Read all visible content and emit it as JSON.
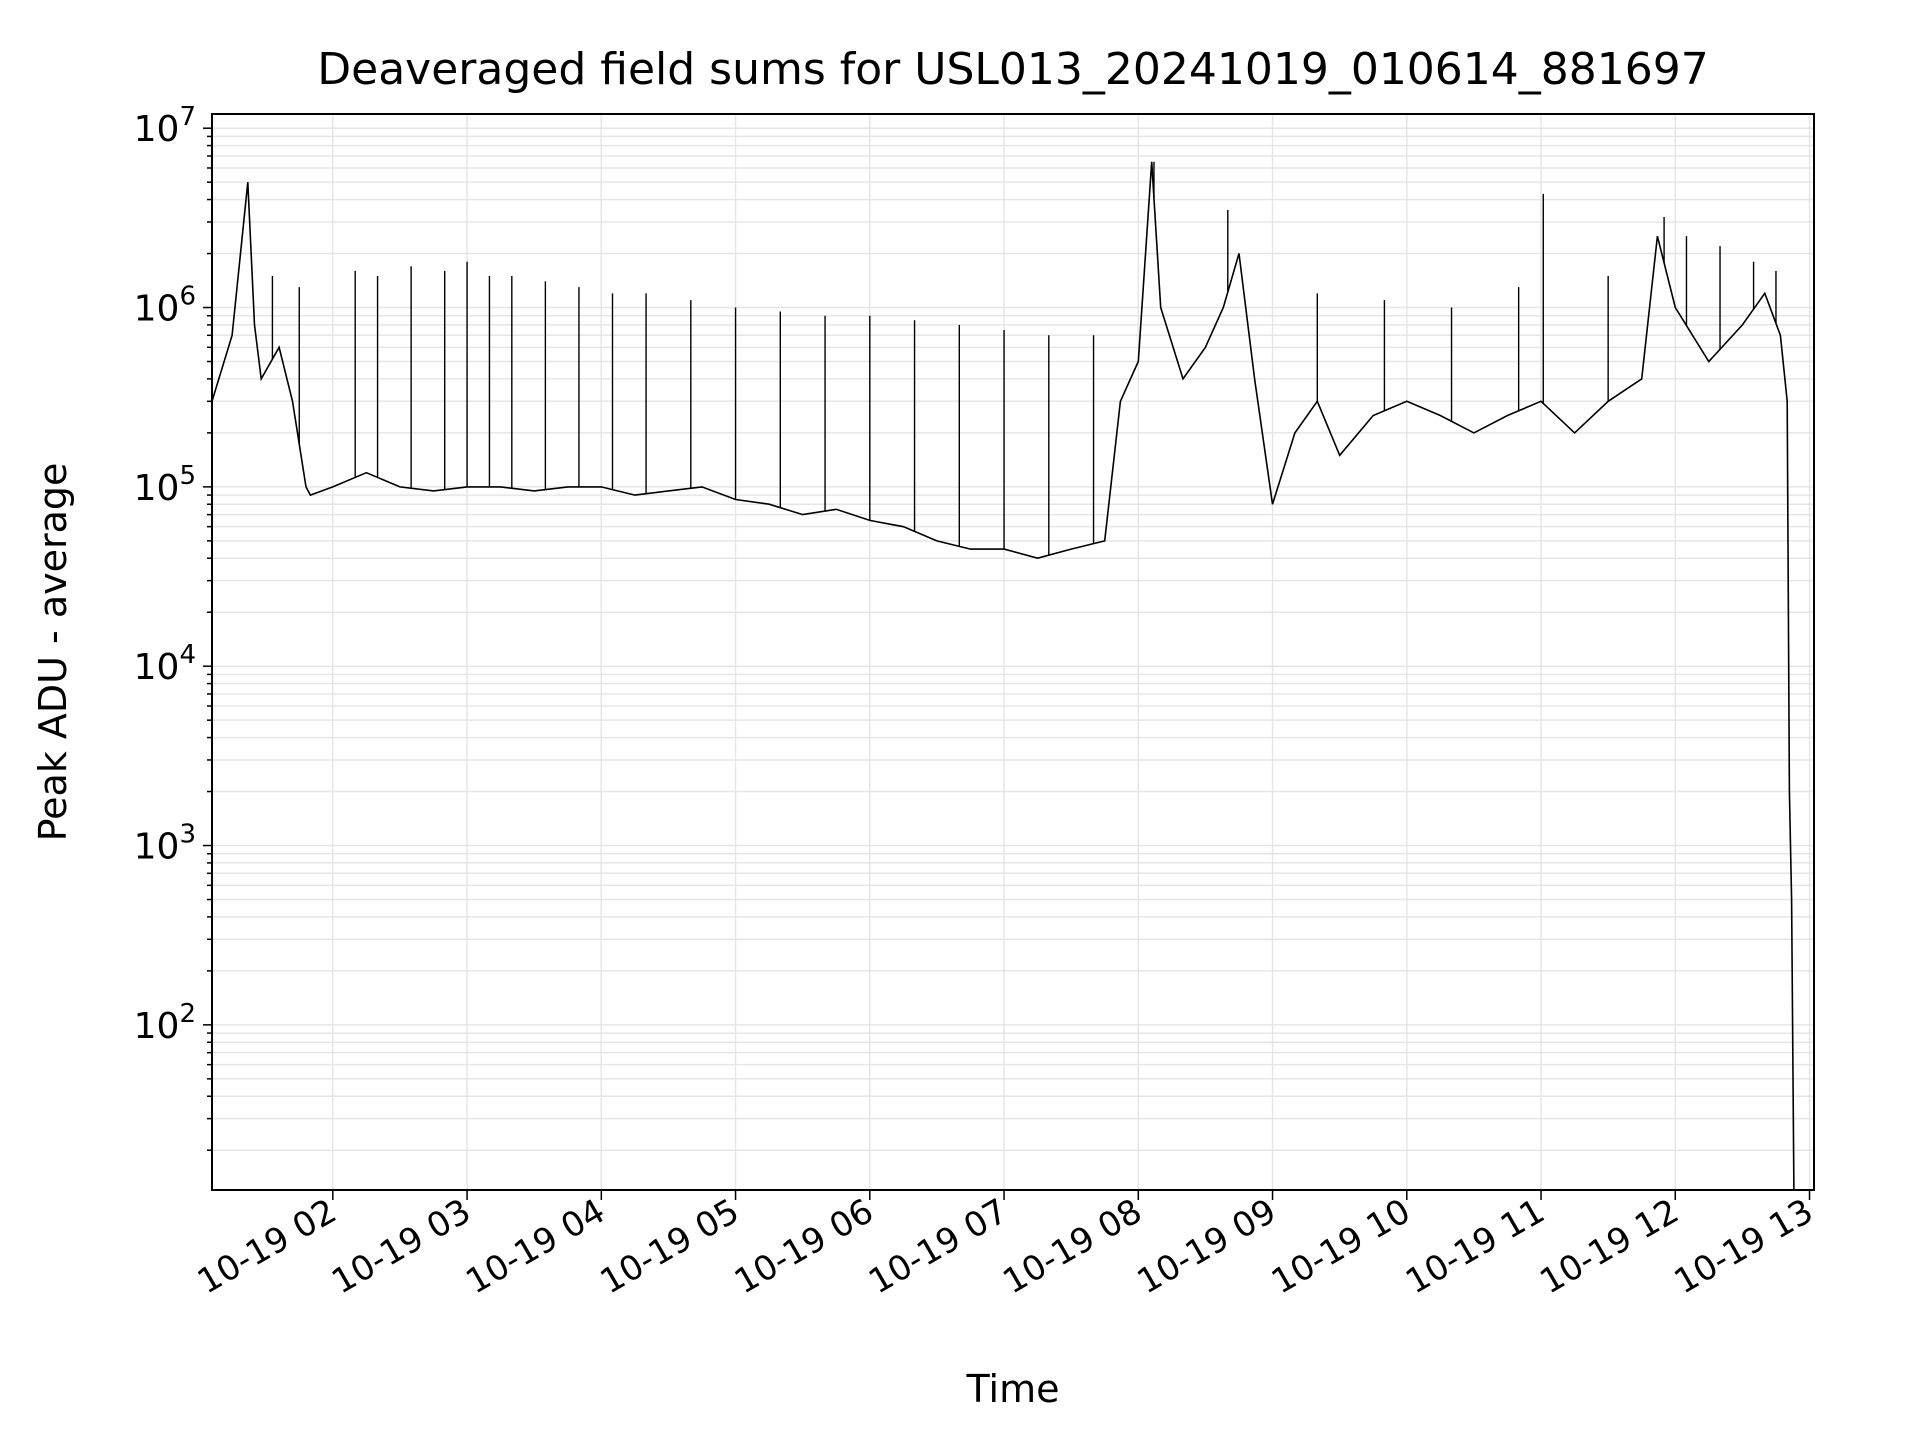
{
  "chart_data": {
    "type": "line",
    "title": "Deaveraged field sums for USL013_20241019_010614_881697",
    "xlabel": "Time",
    "ylabel": "Peak ADU - average",
    "yscale": "log",
    "ylim": [
      12,
      12000000
    ],
    "xlim": [
      "10-19 01:06",
      "10-19 13:02"
    ],
    "grid": true,
    "line_color": "#000000",
    "grid_color": "#e6e6e6",
    "x_ticks": [
      "10-19 02",
      "10-19 03",
      "10-19 04",
      "10-19 05",
      "10-19 06",
      "10-19 07",
      "10-19 08",
      "10-19 09",
      "10-19 10",
      "10-19 11",
      "10-19 12",
      "10-19 13"
    ],
    "y_ticks": [
      {
        "base": "10",
        "exp": "2"
      },
      {
        "base": "10",
        "exp": "3"
      },
      {
        "base": "10",
        "exp": "4"
      },
      {
        "base": "10",
        "exp": "5"
      },
      {
        "base": "10",
        "exp": "6"
      },
      {
        "base": "10",
        "exp": "7"
      }
    ],
    "series": [
      {
        "x": [
          "10-19 01:06",
          "10-19 01:15",
          "10-19 01:22",
          "10-19 01:25",
          "10-19 01:28",
          "10-19 01:36",
          "10-19 01:42",
          "10-19 01:48",
          "10-19 01:50",
          "10-19 02:00",
          "10-19 02:15",
          "10-19 02:30",
          "10-19 02:45",
          "10-19 03:00",
          "10-19 03:15",
          "10-19 03:30",
          "10-19 03:45",
          "10-19 04:00",
          "10-19 04:15",
          "10-19 04:30",
          "10-19 04:45",
          "10-19 05:00",
          "10-19 05:15",
          "10-19 05:30",
          "10-19 05:45",
          "10-19 06:00",
          "10-19 06:15",
          "10-19 06:30",
          "10-19 06:45",
          "10-19 07:00",
          "10-19 07:15",
          "10-19 07:30",
          "10-19 07:45",
          "10-19 07:52",
          "10-19 08:00",
          "10-19 08:06",
          "10-19 08:10",
          "10-19 08:20",
          "10-19 08:30",
          "10-19 08:38",
          "10-19 08:45",
          "10-19 08:52",
          "10-19 09:00",
          "10-19 09:10",
          "10-19 09:20",
          "10-19 09:30",
          "10-19 09:45",
          "10-19 10:00",
          "10-19 10:15",
          "10-19 10:30",
          "10-19 10:45",
          "10-19 11:00",
          "10-19 11:15",
          "10-19 11:30",
          "10-19 11:45",
          "10-19 11:52",
          "10-19 12:00",
          "10-19 12:15",
          "10-19 12:30",
          "10-19 12:40",
          "10-19 12:47",
          "10-19 12:50",
          "10-19 12:51",
          "10-19 12:52",
          "10-19 12:53"
        ],
        "y": [
          300000,
          700000,
          5000000,
          800000,
          400000,
          600000,
          300000,
          100000,
          90000,
          100000,
          120000,
          100000,
          95000,
          100000,
          100000,
          95000,
          100000,
          100000,
          90000,
          95000,
          100000,
          85000,
          80000,
          70000,
          75000,
          65000,
          60000,
          50000,
          45000,
          45000,
          40000,
          45000,
          50000,
          300000,
          500000,
          6500000,
          1000000,
          400000,
          600000,
          1000000,
          2000000,
          400000,
          80000,
          200000,
          300000,
          150000,
          250000,
          300000,
          250000,
          200000,
          250000,
          300000,
          200000,
          300000,
          400000,
          2500000,
          1000000,
          500000,
          800000,
          1200000,
          700000,
          300000,
          2000,
          500,
          12
        ]
      }
    ],
    "spikes": {
      "x": [
        "10-19 01:33",
        "10-19 01:45",
        "10-19 02:10",
        "10-19 02:20",
        "10-19 02:35",
        "10-19 02:50",
        "10-19 03:00",
        "10-19 03:10",
        "10-19 03:20",
        "10-19 03:35",
        "10-19 03:50",
        "10-19 04:05",
        "10-19 04:20",
        "10-19 04:40",
        "10-19 05:00",
        "10-19 05:20",
        "10-19 05:40",
        "10-19 06:00",
        "10-19 06:20",
        "10-19 06:40",
        "10-19 07:00",
        "10-19 07:20",
        "10-19 07:40",
        "10-19 08:07",
        "10-19 08:40",
        "10-19 09:20",
        "10-19 09:50",
        "10-19 10:20",
        "10-19 10:50",
        "10-19 11:01",
        "10-19 11:30",
        "10-19 11:55",
        "10-19 12:05",
        "10-19 12:20",
        "10-19 12:35",
        "10-19 12:45"
      ],
      "y": [
        1500000,
        1300000,
        1600000,
        1500000,
        1700000,
        1600000,
        1800000,
        1500000,
        1500000,
        1400000,
        1300000,
        1200000,
        1200000,
        1100000,
        1000000,
        950000,
        900000,
        900000,
        850000,
        800000,
        750000,
        700000,
        700000,
        6500000,
        3500000,
        1200000,
        1100000,
        1000000,
        1300000,
        4300000,
        1500000,
        3200000,
        2500000,
        2200000,
        1800000,
        1600000
      ]
    }
  }
}
